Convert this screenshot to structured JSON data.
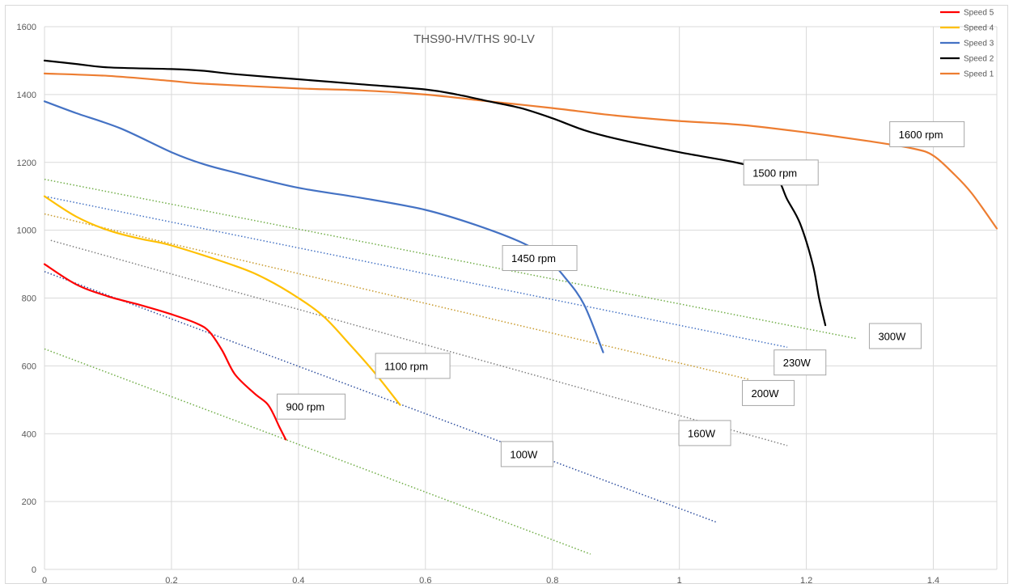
{
  "chart_data": {
    "type": "line",
    "title": "THS90-HV/THS 90-LV",
    "xlim": [
      0,
      1.5
    ],
    "ylim": [
      0,
      1600
    ],
    "x_ticks": [
      0,
      0.2,
      0.4,
      0.6,
      0.8,
      1,
      1.2,
      1.4
    ],
    "y_ticks": [
      0,
      200,
      400,
      600,
      800,
      1000,
      1200,
      1400,
      1600
    ],
    "grid": true,
    "legend_position": "top-right",
    "series": [
      {
        "name": "Speed 5",
        "color": "#ff0000",
        "points": [
          [
            0,
            900
          ],
          [
            0.05,
            840
          ],
          [
            0.1,
            805
          ],
          [
            0.15,
            780
          ],
          [
            0.2,
            752
          ],
          [
            0.24,
            725
          ],
          [
            0.26,
            700
          ],
          [
            0.28,
            645
          ],
          [
            0.3,
            575
          ],
          [
            0.33,
            520
          ],
          [
            0.35,
            490
          ],
          [
            0.36,
            460
          ],
          [
            0.37,
            420
          ],
          [
            0.38,
            383
          ]
        ]
      },
      {
        "name": "Speed 4",
        "color": "#ffc000",
        "points": [
          [
            0,
            1100
          ],
          [
            0.05,
            1040
          ],
          [
            0.1,
            1000
          ],
          [
            0.15,
            975
          ],
          [
            0.2,
            955
          ],
          [
            0.3,
            895
          ],
          [
            0.35,
            855
          ],
          [
            0.4,
            800
          ],
          [
            0.44,
            745
          ],
          [
            0.48,
            665
          ],
          [
            0.52,
            580
          ],
          [
            0.56,
            485
          ]
        ]
      },
      {
        "name": "Speed 3",
        "color": "#4472c4",
        "points": [
          [
            0,
            1380
          ],
          [
            0.05,
            1345
          ],
          [
            0.12,
            1300
          ],
          [
            0.2,
            1230
          ],
          [
            0.25,
            1195
          ],
          [
            0.3,
            1170
          ],
          [
            0.4,
            1125
          ],
          [
            0.5,
            1095
          ],
          [
            0.6,
            1060
          ],
          [
            0.68,
            1015
          ],
          [
            0.75,
            965
          ],
          [
            0.79,
            920
          ],
          [
            0.82,
            860
          ],
          [
            0.85,
            780
          ],
          [
            0.88,
            640
          ]
        ]
      },
      {
        "name": "Speed 2",
        "color": "#000000",
        "points": [
          [
            0,
            1500
          ],
          [
            0.05,
            1490
          ],
          [
            0.1,
            1480
          ],
          [
            0.2,
            1475
          ],
          [
            0.25,
            1470
          ],
          [
            0.3,
            1460
          ],
          [
            0.4,
            1445
          ],
          [
            0.5,
            1430
          ],
          [
            0.6,
            1415
          ],
          [
            0.65,
            1400
          ],
          [
            0.7,
            1380
          ],
          [
            0.75,
            1360
          ],
          [
            0.8,
            1330
          ],
          [
            0.85,
            1295
          ],
          [
            0.9,
            1270
          ],
          [
            1,
            1230
          ],
          [
            1.1,
            1195
          ],
          [
            1.15,
            1160
          ],
          [
            1.17,
            1090
          ],
          [
            1.19,
            1020
          ],
          [
            1.21,
            900
          ],
          [
            1.22,
            800
          ],
          [
            1.23,
            720
          ]
        ]
      },
      {
        "name": "Speed 1",
        "color": "#ed7d31",
        "points": [
          [
            0,
            1462
          ],
          [
            0.1,
            1455
          ],
          [
            0.2,
            1440
          ],
          [
            0.25,
            1432
          ],
          [
            0.4,
            1418
          ],
          [
            0.5,
            1412
          ],
          [
            0.6,
            1400
          ],
          [
            0.7,
            1380
          ],
          [
            0.8,
            1360
          ],
          [
            0.9,
            1338
          ],
          [
            1,
            1322
          ],
          [
            1.1,
            1310
          ],
          [
            1.2,
            1288
          ],
          [
            1.3,
            1262
          ],
          [
            1.37,
            1240
          ],
          [
            1.4,
            1220
          ],
          [
            1.43,
            1170
          ],
          [
            1.46,
            1110
          ],
          [
            1.5,
            1005
          ]
        ]
      }
    ],
    "power_lines": [
      {
        "label": "300W",
        "color": "#70ad47",
        "points": [
          [
            0,
            1150
          ],
          [
            1.28,
            680
          ]
        ]
      },
      {
        "label": "230W",
        "color": "#4472c4",
        "points": [
          [
            0,
            1100
          ],
          [
            1.17,
            655
          ]
        ]
      },
      {
        "label": "200W",
        "color": "#c89a2c",
        "points": [
          [
            0,
            1048
          ],
          [
            1.11,
            560
          ]
        ]
      },
      {
        "label": "160W",
        "color": "#7f7f7f",
        "points": [
          [
            0.01,
            970
          ],
          [
            1.17,
            365
          ]
        ]
      },
      {
        "label": "100W",
        "color": "#2f4f9f",
        "points": [
          [
            0,
            878
          ],
          [
            1.06,
            138
          ]
        ]
      },
      {
        "color": "#70ad47",
        "points": [
          [
            0,
            650
          ],
          [
            0.86,
            45
          ]
        ]
      }
    ],
    "annotations": [
      {
        "text": "1600 rpm",
        "x": 1.39,
        "y": 1283
      },
      {
        "text": "1500 rpm",
        "x": 1.16,
        "y": 1170
      },
      {
        "text": "1450 rpm",
        "x": 0.78,
        "y": 918
      },
      {
        "text": "300W",
        "x": 1.34,
        "y": 688
      },
      {
        "text": "230W",
        "x": 1.19,
        "y": 610
      },
      {
        "text": "1100 rpm",
        "x": 0.58,
        "y": 600
      },
      {
        "text": "200W",
        "x": 1.14,
        "y": 520
      },
      {
        "text": "900 rpm",
        "x": 0.42,
        "y": 480
      },
      {
        "text": "160W",
        "x": 1.04,
        "y": 402
      },
      {
        "text": "100W",
        "x": 0.76,
        "y": 340
      }
    ]
  }
}
